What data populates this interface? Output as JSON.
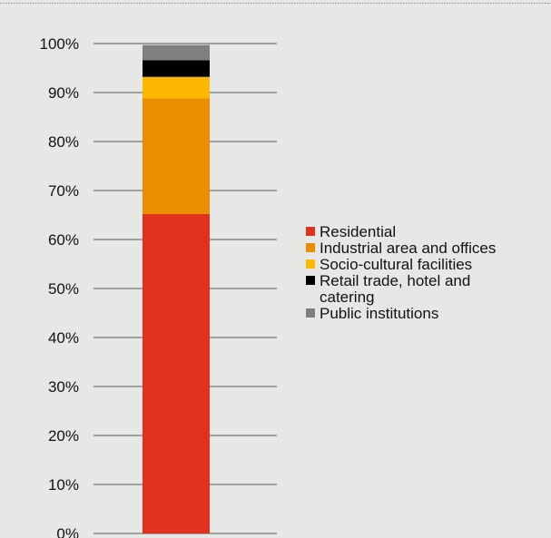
{
  "chart_data": {
    "type": "bar",
    "stacked": true,
    "categories": [
      ""
    ],
    "y_ticks": [
      "0%",
      "10%",
      "20%",
      "30%",
      "40%",
      "50%",
      "60%",
      "70%",
      "80%",
      "90%",
      "100%"
    ],
    "ylim": [
      0,
      100
    ],
    "y_unit": "%",
    "grid": true,
    "legend_position": "right",
    "series": [
      {
        "name": "Residential",
        "values": [
          65.2
        ],
        "color": "#e2321f"
      },
      {
        "name": "Industrial area and offices",
        "values": [
          23.6
        ],
        "color": "#ec8c00"
      },
      {
        "name": "Socio-cultural facilities",
        "values": [
          4.4
        ],
        "color": "#fcb800"
      },
      {
        "name": "Retail trade, hotel and catering",
        "values": [
          3.4
        ],
        "color": "#000000"
      },
      {
        "name": "Public institutions",
        "values": [
          3.1
        ],
        "color": "#7f7f7f"
      }
    ],
    "legend_lines": [
      [
        "Residential"
      ],
      [
        "Industrial area and offices"
      ],
      [
        "Socio-cultural facilities"
      ],
      [
        "Retail trade, hotel and",
        "catering"
      ],
      [
        "Public institutions"
      ]
    ]
  }
}
